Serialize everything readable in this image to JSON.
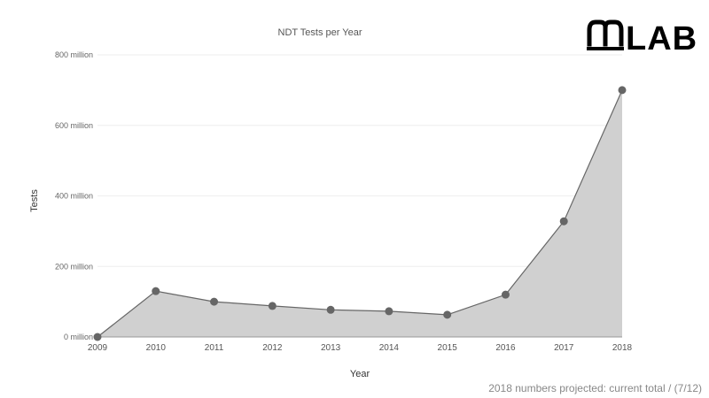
{
  "logo": {
    "text": "LAB"
  },
  "footnote": "2018 numbers projected: current total / (7/12)",
  "colors": {
    "line": "#666666",
    "area": "#d0d0d0",
    "marker": "#666666",
    "grid": "#eeeeee"
  },
  "chart_data": {
    "type": "area",
    "title": "NDT Tests per Year",
    "xlabel": "Year",
    "ylabel": "Tests",
    "categories": [
      "2009",
      "2010",
      "2011",
      "2012",
      "2013",
      "2014",
      "2015",
      "2016",
      "2017",
      "2018"
    ],
    "values": [
      0,
      130000000,
      100000000,
      88000000,
      77000000,
      73000000,
      63000000,
      120000000,
      328000000,
      700000000
    ],
    "ylim": [
      0,
      800000000
    ],
    "yticks": [
      0,
      200000000,
      400000000,
      600000000,
      800000000
    ],
    "ytick_labels": [
      "0 million",
      "200 million",
      "400 million",
      "600 million",
      "800 million"
    ],
    "grid": true,
    "markers": true
  }
}
